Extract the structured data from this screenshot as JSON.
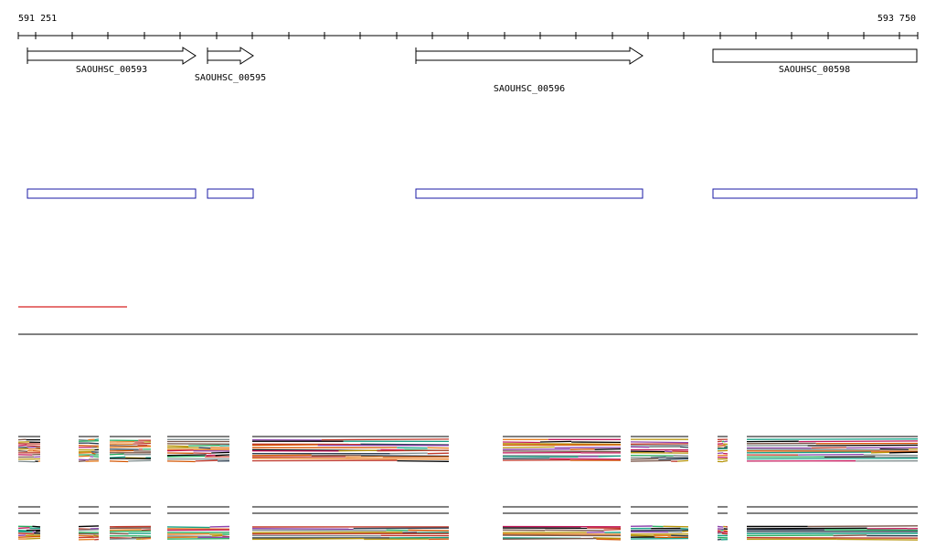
{
  "ruler": {
    "start_label": "591 251",
    "end_label": "593 750"
  },
  "genes": [
    {
      "id": "SAOUHSC_00593",
      "strand": "+"
    },
    {
      "id": "SAOUHSC_00595",
      "strand": "+"
    },
    {
      "id": "SAOUHSC_00596",
      "strand": "+"
    },
    {
      "id": "SAOUHSC_00598",
      "strand": "+"
    }
  ],
  "colors": {
    "ruler": "#000000",
    "gene_box": "#000000",
    "feature_box": "#1a1aa6",
    "scale_bar": "#d62020",
    "track_palette": [
      "#000000",
      "#c0392b",
      "#8e44ad",
      "#27ae60",
      "#e67e22",
      "#795548",
      "#2c3e50",
      "#d35400",
      "#7f8c8d",
      "#b7950b",
      "#16a085",
      "#c2185b"
    ]
  }
}
